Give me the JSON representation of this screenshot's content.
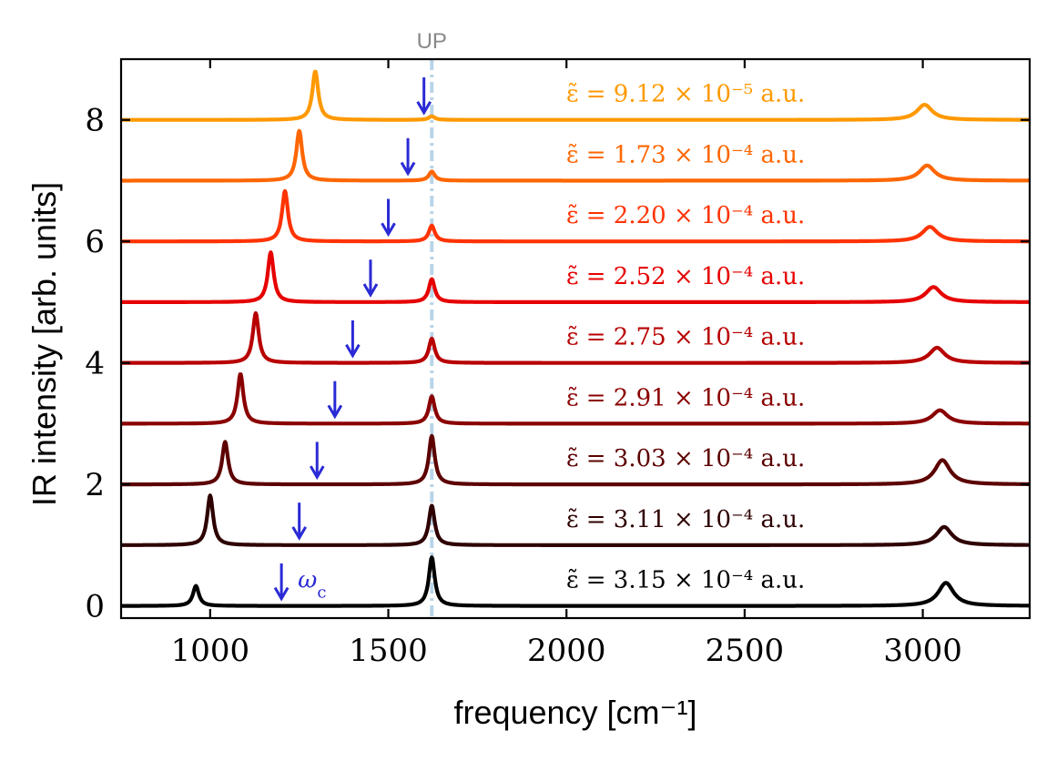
{
  "chart_data": {
    "type": "line",
    "title": "",
    "xlabel": "frequency [cm⁻¹]",
    "ylabel": "IR intensity [arb. units]",
    "xlim": [
      750,
      3300
    ],
    "ylim": [
      -0.2,
      9.0
    ],
    "x_ticks": [
      {
        "value": 1000,
        "label": "1000"
      },
      {
        "value": 1500,
        "label": "1500"
      },
      {
        "value": 2000,
        "label": "2000"
      },
      {
        "value": 2500,
        "label": "2500"
      },
      {
        "value": 3000,
        "label": "3000"
      }
    ],
    "y_ticks": [
      {
        "value": 0,
        "label": "0"
      },
      {
        "value": 2,
        "label": "2"
      },
      {
        "value": 4,
        "label": "4"
      },
      {
        "value": 6,
        "label": "6"
      },
      {
        "value": 8,
        "label": "8"
      }
    ],
    "grid": false,
    "vline": {
      "x": 1622,
      "label": "UP",
      "color": "#b8d4e8"
    },
    "omega_label": "ω",
    "omega_sub": "c",
    "arrow_color": "#2a2ad6",
    "series": [
      {
        "offset": 0,
        "color": "#000000",
        "annotation": "ε̃ = 3.15 × 10⁻⁴ a.u.",
        "arrow_x": 1200,
        "peaks": [
          {
            "x": 960,
            "h": 0.33
          },
          {
            "x": 1622,
            "h": 0.8
          },
          {
            "x": 3065,
            "h": 0.38
          }
        ]
      },
      {
        "offset": 1,
        "color": "#2e0000",
        "annotation": "ε̃ = 3.11 × 10⁻⁴ a.u.",
        "arrow_x": 1250,
        "peaks": [
          {
            "x": 1000,
            "h": 0.82
          },
          {
            "x": 1622,
            "h": 0.65
          },
          {
            "x": 3060,
            "h": 0.3
          }
        ]
      },
      {
        "offset": 2,
        "color": "#5c0000",
        "annotation": "ε̃ = 3.03 × 10⁻⁴ a.u.",
        "arrow_x": 1300,
        "peaks": [
          {
            "x": 1042,
            "h": 0.7
          },
          {
            "x": 1622,
            "h": 0.8
          },
          {
            "x": 3055,
            "h": 0.4
          }
        ]
      },
      {
        "offset": 3,
        "color": "#8a0000",
        "annotation": "ε̃ = 2.91 × 10⁻⁴ a.u.",
        "arrow_x": 1350,
        "peaks": [
          {
            "x": 1085,
            "h": 0.82
          },
          {
            "x": 1622,
            "h": 0.45
          },
          {
            "x": 3048,
            "h": 0.22
          }
        ]
      },
      {
        "offset": 4,
        "color": "#b80000",
        "annotation": "ε̃ = 2.75 × 10⁻⁴ a.u.",
        "arrow_x": 1400,
        "peaks": [
          {
            "x": 1128,
            "h": 0.82
          },
          {
            "x": 1622,
            "h": 0.4
          },
          {
            "x": 3040,
            "h": 0.25
          }
        ]
      },
      {
        "offset": 5,
        "color": "#e60000",
        "annotation": "ε̃ = 2.52 × 10⁻⁴ a.u.",
        "arrow_x": 1450,
        "peaks": [
          {
            "x": 1170,
            "h": 0.82
          },
          {
            "x": 1622,
            "h": 0.38
          },
          {
            "x": 3030,
            "h": 0.25
          }
        ]
      },
      {
        "offset": 6,
        "color": "#ff3300",
        "annotation": "ε̃ = 2.20 × 10⁻⁴ a.u.",
        "arrow_x": 1500,
        "peaks": [
          {
            "x": 1210,
            "h": 0.83
          },
          {
            "x": 1622,
            "h": 0.26
          },
          {
            "x": 3020,
            "h": 0.24
          }
        ]
      },
      {
        "offset": 7,
        "color": "#ff6600",
        "annotation": "ε̃ = 1.73 × 10⁻⁴ a.u.",
        "arrow_x": 1555,
        "peaks": [
          {
            "x": 1250,
            "h": 0.82
          },
          {
            "x": 1622,
            "h": 0.15
          },
          {
            "x": 3012,
            "h": 0.25
          }
        ]
      },
      {
        "offset": 8,
        "color": "#ff9900",
        "annotation": "ε̃ = 9.12 × 10⁻⁵ a.u.",
        "arrow_x": 1600,
        "peaks": [
          {
            "x": 1295,
            "h": 0.8
          },
          {
            "x": 1622,
            "h": 0.06
          },
          {
            "x": 3005,
            "h": 0.25
          }
        ]
      }
    ]
  }
}
